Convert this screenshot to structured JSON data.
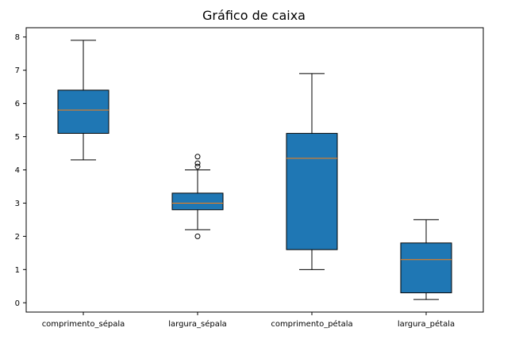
{
  "chart_data": {
    "type": "box",
    "title": "Gráfico de caixa",
    "xlabel": "",
    "ylabel": "",
    "ylim": [
      -0.28,
      8.28
    ],
    "yticks": [
      0,
      1,
      2,
      3,
      4,
      5,
      6,
      7,
      8
    ],
    "grid": false,
    "colors": {
      "box_fill": "#1f77b4",
      "median": "#ff7f0e",
      "line": "#000000",
      "background": "#ffffff"
    },
    "categories": [
      "comprimento_sépala",
      "largura_sépala",
      "comprimento_pétala",
      "largura_pétala"
    ],
    "boxes": [
      {
        "name": "comprimento_sépala",
        "whisker_low": 4.3,
        "q1": 5.1,
        "median": 5.8,
        "q3": 6.4,
        "whisker_high": 7.9,
        "outliers": []
      },
      {
        "name": "largura_sépala",
        "whisker_low": 2.2,
        "q1": 2.8,
        "median": 3.0,
        "q3": 3.3,
        "whisker_high": 4.0,
        "outliers": [
          2.0,
          4.1,
          4.2,
          4.4
        ]
      },
      {
        "name": "comprimento_pétala",
        "whisker_low": 1.0,
        "q1": 1.6,
        "median": 4.35,
        "q3": 5.1,
        "whisker_high": 6.9,
        "outliers": []
      },
      {
        "name": "largura_pétala",
        "whisker_low": 0.1,
        "q1": 0.3,
        "median": 1.3,
        "q3": 1.8,
        "whisker_high": 2.5,
        "outliers": []
      }
    ]
  }
}
